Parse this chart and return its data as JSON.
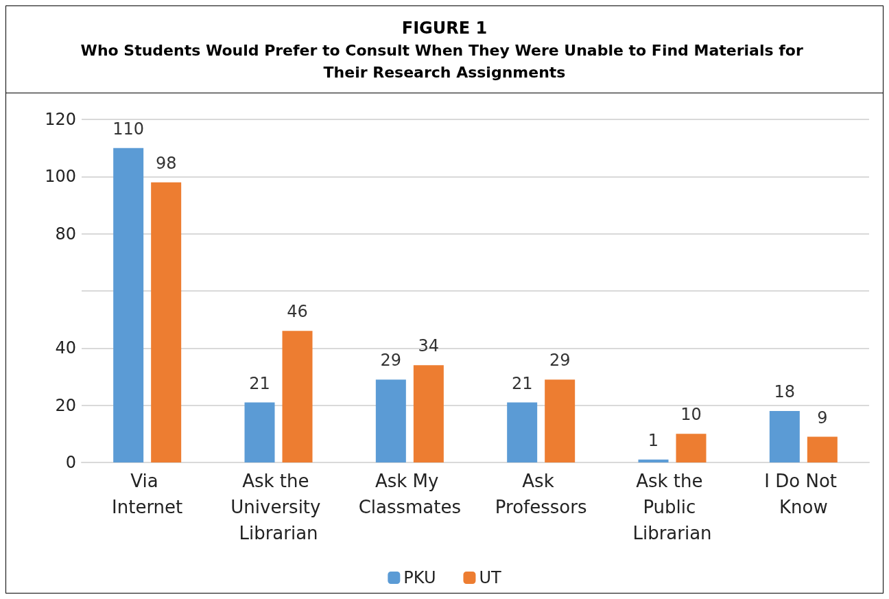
{
  "chart_data": {
    "type": "bar",
    "title": "FIGURE 1",
    "subtitle": "Who Students Would Prefer to Consult When They Were Unable to Find Materials for Their Research Assignments",
    "categories": [
      "Via Internet",
      "Ask the University Librarian",
      "Ask My Classmates",
      "Ask Professors",
      "Ask the Public Librarian",
      "I Do Not Know"
    ],
    "series": [
      {
        "name": "PKU",
        "color": "#5b9bd5",
        "values": [
          110,
          21,
          29,
          21,
          1,
          18
        ]
      },
      {
        "name": "UT",
        "color": "#ed7d31",
        "values": [
          98,
          46,
          34,
          29,
          10,
          9
        ]
      }
    ],
    "ylim": [
      0,
      120
    ],
    "yticks": [
      0,
      20,
      40,
      {
        "value": 60,
        "label": null
      },
      80,
      100,
      120
    ],
    "grid": "y",
    "legend": "bottom",
    "data_labels": true
  }
}
